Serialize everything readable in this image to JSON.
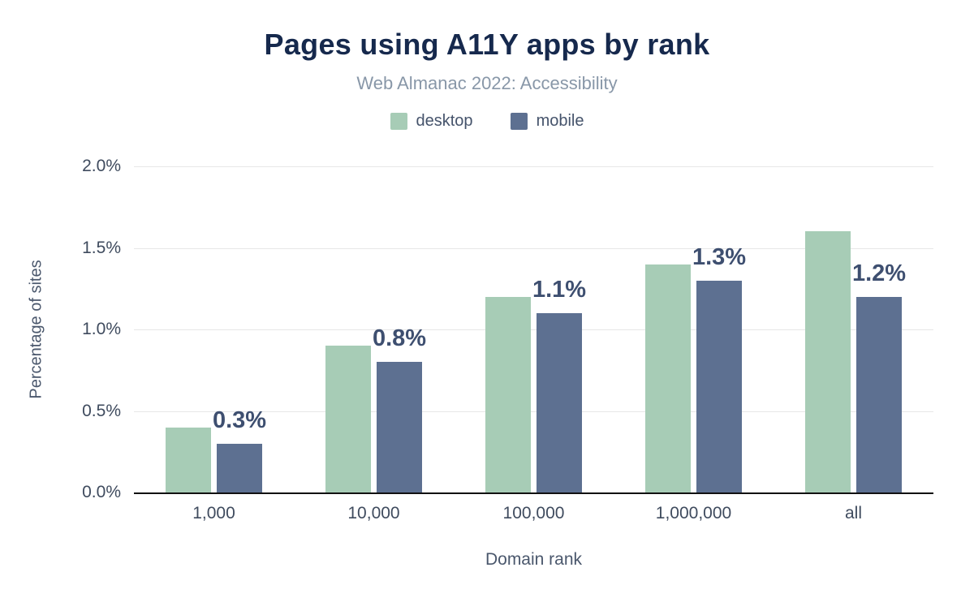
{
  "chart_data": {
    "type": "bar",
    "title": "Pages using A11Y apps by rank",
    "subtitle": "Web Almanac 2022: Accessibility",
    "xlabel": "Domain rank",
    "ylabel": "Percentage of sites",
    "categories": [
      "1,000",
      "10,000",
      "100,000",
      "1,000,000",
      "all"
    ],
    "series": [
      {
        "name": "desktop",
        "color": "#a7ccb6",
        "values": [
          0.4,
          0.9,
          1.2,
          1.4,
          1.6
        ]
      },
      {
        "name": "mobile",
        "color": "#5d7091",
        "values": [
          0.3,
          0.8,
          1.1,
          1.3,
          1.2
        ]
      }
    ],
    "bar_labels": [
      "0.3%",
      "0.8%",
      "1.1%",
      "1.3%",
      "1.2%"
    ],
    "ylim": [
      0,
      2
    ],
    "yticks": [
      {
        "value": 0.0,
        "label": "0.0%"
      },
      {
        "value": 0.5,
        "label": "0.5%"
      },
      {
        "value": 1.0,
        "label": "1.0%"
      },
      {
        "value": 1.5,
        "label": "1.5%"
      },
      {
        "value": 2.0,
        "label": "2.0%"
      }
    ],
    "grid": true,
    "legend_position": "top"
  },
  "colors": {
    "title": "#16294d",
    "subtitle": "#8897a8",
    "axis_text": "#3f4b5e",
    "bar_label": "#3e4f70",
    "gridline": "#e7e7e7",
    "baseline": "#111111"
  }
}
